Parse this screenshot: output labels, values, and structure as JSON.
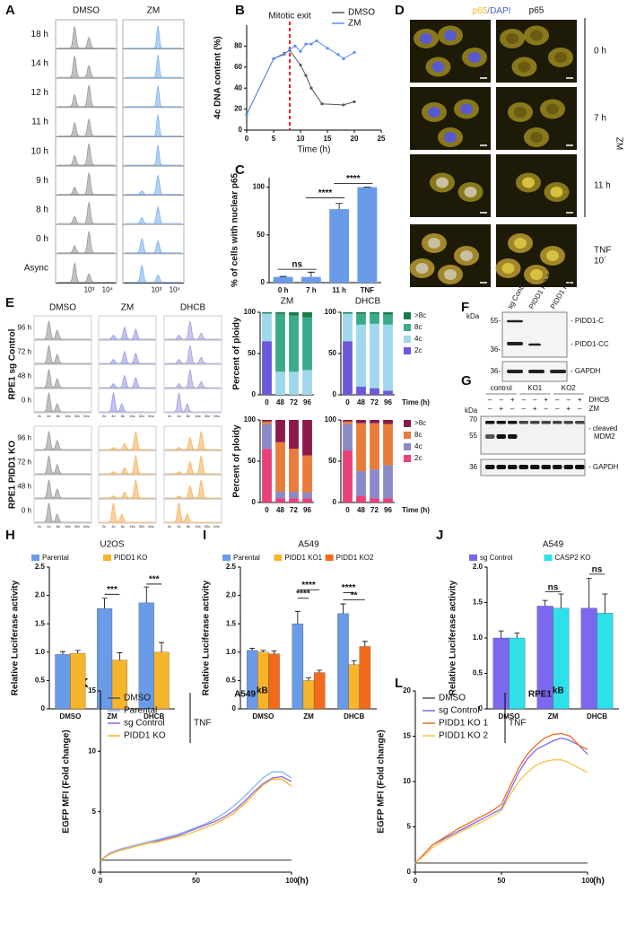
{
  "panel_labels": [
    "A",
    "B",
    "C",
    "D",
    "E",
    "F",
    "G",
    "H",
    "I",
    "J",
    "K",
    "L"
  ],
  "panel_a": {
    "columns": [
      "DMSO",
      "ZM"
    ],
    "rows": [
      "18 h",
      "14 h",
      "12 h",
      "11 h",
      "10 h",
      "9 h",
      "8 h",
      "0 h",
      "Async"
    ],
    "axis_ticks": [
      "10³",
      "10⁴"
    ]
  },
  "panel_d": {
    "header_left": [
      "p65",
      "/",
      "DAPI"
    ],
    "header_right": "p65",
    "rows": [
      "0 h",
      "7 h",
      "11 h",
      "TNF"
    ],
    "row_note": "10´",
    "treatment": "ZM"
  },
  "panel_e": {
    "columns": [
      "DMSO",
      "ZM",
      "DHCB"
    ],
    "rows": [
      "96 h",
      "72 h",
      "48 h",
      "0 h"
    ],
    "groups": [
      "RPE1 sg Control",
      "RPE1 PIDD1 KO"
    ],
    "axis_ticks": [
      "2c",
      "4c",
      "8c",
      "16c",
      "32c",
      "64c"
    ]
  },
  "panel_f": {
    "kda": "kDa",
    "markers": [
      "55-",
      "36-",
      "36-"
    ],
    "lanes": [
      "sg Control",
      "PIDD1 KO 1",
      "PIDD1 KO 2"
    ],
    "bands": [
      "- PIDD1-C",
      "- PIDD1-CC",
      "- GAPDH"
    ]
  },
  "panel_g": {
    "groups": [
      "control",
      "KO1",
      "KO2"
    ],
    "treatments": [
      "DHCB",
      "ZM"
    ],
    "dhcb_signs": [
      "–",
      "–",
      "+",
      "–",
      "–",
      "+",
      "–",
      "–",
      "+"
    ],
    "zm_signs": [
      "–",
      "+",
      "–",
      "–",
      "+",
      "–",
      "–",
      "+",
      "–"
    ],
    "kda": "kDa",
    "markers": [
      "70",
      "55",
      "36"
    ],
    "bands": [
      "- cleaved",
      "MDM2",
      "- GAPDH"
    ]
  },
  "chart_data": [
    {
      "type": "line",
      "ylabel": "4c DNA content (%)",
      "xlabel": "Time (h)",
      "xlim": [
        0,
        25
      ],
      "xticks": [
        0,
        5,
        10,
        15,
        20,
        25
      ],
      "ylim": [
        0,
        100
      ],
      "yticks": [
        0,
        20,
        40,
        60,
        80
      ],
      "annotation": "Mitotic exit",
      "annotation_x": 8,
      "annotation_color": "#e8202a",
      "legend": "top-right",
      "series": [
        {
          "name": "DMSO",
          "color": "#555555",
          "x": [
            0,
            5,
            7,
            8,
            10,
            11,
            12,
            14,
            18,
            20
          ],
          "values": [
            15,
            68,
            73,
            76,
            62,
            52,
            40,
            25,
            24,
            27
          ]
        },
        {
          "name": "ZM",
          "color": "#5b8ff0",
          "x": [
            0,
            5,
            7,
            8,
            9,
            10,
            11,
            12,
            13,
            15,
            17,
            18,
            20
          ],
          "values": [
            15,
            68,
            72,
            77,
            80,
            75,
            82,
            82,
            85,
            78,
            72,
            68,
            74
          ]
        }
      ]
    },
    {
      "type": "bar",
      "ylabel": "% of cells with nuclear p65",
      "categories": [
        "0 h",
        "7 h",
        "11 h",
        "TNF"
      ],
      "values": [
        6,
        6,
        77,
        100
      ],
      "errors": [
        0.5,
        5,
        6,
        0
      ],
      "color": "#6a9be8",
      "ylim": [
        0,
        110
      ],
      "yticks": [
        0,
        50,
        100
      ],
      "annotations": [
        "ns",
        "****",
        "****"
      ]
    },
    {
      "type": "stacked_bar",
      "title": "ZM",
      "ylabel": "Percent of ploidy",
      "categories": [
        "0",
        "48",
        "72",
        "96"
      ],
      "ylim": [
        0,
        100
      ],
      "yticks": [
        0,
        50,
        100
      ],
      "series": [
        {
          "color": "#6a5ad8",
          "values": [
            65,
            0,
            0,
            0
          ]
        },
        {
          "color": "#9fd8ec",
          "values": [
            33,
            28,
            28,
            30
          ]
        },
        {
          "color": "#3aaa8a",
          "values": [
            1,
            70,
            68,
            64
          ]
        },
        {
          "color": "#1a7a4a",
          "values": [
            1,
            2,
            4,
            6
          ]
        }
      ]
    },
    {
      "type": "stacked_bar",
      "title": "DHCB",
      "xlabel": "Time (h)",
      "categories": [
        "0",
        "48",
        "72",
        "96"
      ],
      "ylim": [
        0,
        100
      ],
      "yticks": [
        0,
        50,
        100
      ],
      "series": [
        {
          "name": "2c",
          "color": "#6a5ad8",
          "values": [
            65,
            10,
            8,
            5
          ]
        },
        {
          "name": "4c",
          "color": "#9fd8ec",
          "values": [
            33,
            75,
            78,
            80
          ]
        },
        {
          "name": "8c",
          "color": "#3aaa8a",
          "values": [
            1,
            13,
            12,
            12
          ]
        },
        {
          "name": ">8c",
          "color": "#1a7a4a",
          "values": [
            1,
            2,
            2,
            3
          ]
        }
      ]
    },
    {
      "type": "stacked_bar",
      "ylabel": "Percent of ploidy",
      "categories": [
        "0",
        "48",
        "72",
        "96"
      ],
      "ylim": [
        0,
        100
      ],
      "yticks": [
        0,
        50,
        100
      ],
      "series": [
        {
          "color": "#e8407a",
          "values": [
            65,
            5,
            5,
            5
          ]
        },
        {
          "color": "#8a8ac8",
          "values": [
            30,
            8,
            8,
            7
          ]
        },
        {
          "color": "#e87c3a",
          "values": [
            3,
            60,
            52,
            45
          ]
        },
        {
          "color": "#8b1a4a",
          "values": [
            2,
            27,
            35,
            43
          ]
        }
      ]
    },
    {
      "type": "stacked_bar",
      "xlabel": "Time (h)",
      "categories": [
        "0",
        "48",
        "72",
        "96"
      ],
      "ylim": [
        0,
        100
      ],
      "yticks": [
        0,
        50,
        100
      ],
      "series": [
        {
          "name": "2c",
          "color": "#e8407a",
          "values": [
            63,
            8,
            5,
            5
          ]
        },
        {
          "name": "4c",
          "color": "#8a8ac8",
          "values": [
            32,
            30,
            35,
            40
          ]
        },
        {
          "name": "8c",
          "color": "#e87c3a",
          "values": [
            3,
            58,
            56,
            50
          ]
        },
        {
          "name": ">8c",
          "color": "#8b1a4a",
          "values": [
            2,
            4,
            4,
            5
          ]
        }
      ]
    },
    {
      "type": "grouped_bar",
      "title": "U2OS",
      "ylabel": "Relative Luciferase activity",
      "categories": [
        "DMSO",
        "ZM",
        "DHCB"
      ],
      "ylim": [
        0,
        2.5
      ],
      "yticks": [
        0,
        0.5,
        {
          "value": 1,
          "label": "1.0"
        },
        1.5,
        {
          "value": 2,
          "label": "2.0"
        },
        2.5
      ],
      "annotations": [
        "***",
        "***"
      ],
      "series": [
        {
          "name": "Parental",
          "color": "#6a9be8",
          "values": [
            0.96,
            1.77,
            1.87
          ],
          "errors": [
            0.05,
            0.18,
            0.28
          ]
        },
        {
          "name": "PIDD1 KO",
          "color": "#f7b52b",
          "values": [
            0.98,
            0.86,
            1.0
          ],
          "errors": [
            0.05,
            0.13,
            0.17
          ]
        }
      ]
    },
    {
      "type": "grouped_bar",
      "title": "A549",
      "ylabel": "Relative Luciferase activity",
      "categories": [
        "DMSO",
        "ZM",
        "DHCB"
      ],
      "ylim": [
        0,
        2.5
      ],
      "yticks": [
        0,
        0.5,
        {
          "value": 1,
          "label": "1.0"
        },
        1.5,
        {
          "value": 2,
          "label": "2.0"
        },
        2.5
      ],
      "annotations": [
        "****",
        "****",
        "****",
        "**"
      ],
      "series": [
        {
          "name": "Parental",
          "color": "#6a9be8",
          "values": [
            1.03,
            1.5,
            1.68
          ],
          "errors": [
            0.04,
            0.22,
            0.17
          ]
        },
        {
          "name": "PIDD1 KO1",
          "color": "#f7b52b",
          "values": [
            1.0,
            0.5,
            0.78
          ],
          "errors": [
            0.03,
            0.05,
            0.07
          ]
        },
        {
          "name": "PIDD1 KO2",
          "color": "#f26b1d",
          "values": [
            0.97,
            0.64,
            1.1
          ],
          "errors": [
            0.05,
            0.04,
            0.09
          ]
        }
      ]
    },
    {
      "type": "grouped_bar",
      "title": "A549",
      "ylabel": "Relative Luciferase activity",
      "categories": [
        "DMSO",
        "ZM",
        "DHCB"
      ],
      "ylim": [
        0,
        2
      ],
      "yticks": [
        0,
        0.5,
        {
          "value": 1,
          "label": "1.0"
        },
        1.5,
        {
          "value": 2,
          "label": "2.0"
        }
      ],
      "annotations": [
        "ns",
        "ns"
      ],
      "series": [
        {
          "name": "sg Control",
          "color": "#7b68ee",
          "values": [
            1.0,
            1.45,
            1.42
          ],
          "errors": [
            0.1,
            0.08,
            0.42
          ]
        },
        {
          "name": "CASP2 KO",
          "color": "#2ee0e8",
          "values": [
            1.0,
            1.42,
            1.35
          ],
          "errors": [
            0.07,
            0.2,
            0.27
          ]
        }
      ]
    },
    {
      "type": "line",
      "title": "A549",
      "title_sup": "kB",
      "ylabel": "EGFP MFI (Fold change)",
      "xlabel": "(h)",
      "annotation": "TNF",
      "legend": "top-left",
      "xlim": [
        0,
        100
      ],
      "xticks": [
        0,
        50,
        100
      ],
      "ylim": [
        0,
        15
      ],
      "yticks": [
        0,
        5,
        10,
        15
      ],
      "x": [
        0,
        5,
        10,
        15,
        20,
        25,
        30,
        35,
        40,
        45,
        50,
        55,
        60,
        65,
        70,
        75,
        80,
        85,
        90,
        95,
        100
      ],
      "series": [
        {
          "name": "DMSO",
          "color": "#555555",
          "values": [
            1,
            1,
            1,
            1,
            1,
            1,
            1,
            1,
            1,
            1,
            1,
            1,
            1,
            1,
            1,
            1,
            1,
            1,
            1,
            1,
            1
          ]
        },
        {
          "name": "Parental",
          "color": "#8ab4f8",
          "values": [
            1,
            1.6,
            1.9,
            2.1,
            2.3,
            2.5,
            2.7,
            2.9,
            3.1,
            3.4,
            3.7,
            4.0,
            4.4,
            4.9,
            5.5,
            6.2,
            7.0,
            7.8,
            8.3,
            8.3,
            7.8
          ]
        },
        {
          "name": "sg Control",
          "color": "#8a6ae0",
          "values": [
            1,
            1.5,
            1.8,
            2.0,
            2.2,
            2.4,
            2.6,
            2.8,
            3.0,
            3.3,
            3.6,
            3.9,
            4.2,
            4.6,
            5.1,
            5.8,
            6.6,
            7.3,
            7.8,
            7.9,
            7.5
          ]
        },
        {
          "name": "PIDD1 KO",
          "color": "#f7b52b",
          "values": [
            1,
            1.5,
            1.8,
            2.0,
            2.2,
            2.4,
            2.5,
            2.7,
            2.9,
            3.1,
            3.4,
            3.7,
            4.0,
            4.4,
            4.9,
            5.6,
            6.4,
            7.2,
            7.7,
            7.7,
            7.1
          ]
        }
      ]
    },
    {
      "type": "line",
      "title": "RPE1",
      "title_sup": "kB",
      "ylabel": "EGFP MFI (Fold change)",
      "xlabel": "(h)",
      "annotation": "TNF",
      "legend": "top-left",
      "xlim": [
        0,
        100
      ],
      "xticks": [
        0,
        50,
        100
      ],
      "ylim": [
        0,
        20
      ],
      "yticks": [
        0,
        5,
        10,
        15,
        20
      ],
      "x": [
        0,
        5,
        10,
        15,
        20,
        25,
        30,
        35,
        40,
        45,
        50,
        55,
        60,
        65,
        70,
        75,
        80,
        85,
        90,
        95,
        100
      ],
      "series": [
        {
          "name": "DMSO",
          "color": "#555555",
          "values": [
            1,
            1,
            1,
            1,
            1,
            1,
            1,
            1,
            1,
            1,
            1,
            1,
            1,
            1,
            1,
            1,
            1,
            1,
            1,
            1,
            1
          ]
        },
        {
          "name": "sg Control",
          "color": "#7b68ee",
          "values": [
            1,
            2,
            3,
            3.5,
            4,
            4.5,
            5,
            5.5,
            6,
            6.5,
            7,
            9,
            11,
            12.5,
            13.5,
            14,
            14.5,
            14.8,
            14.5,
            14,
            13
          ]
        },
        {
          "name": "PIDD1 KO 1",
          "color": "#f26b1d",
          "values": [
            1,
            2,
            3,
            3.6,
            4.2,
            4.8,
            5.3,
            5.8,
            6.3,
            6.8,
            7.5,
            9.5,
            11.5,
            13,
            14,
            14.8,
            15.2,
            15.3,
            15,
            14,
            13.5
          ]
        },
        {
          "name": "PIDD1 KO 2",
          "color": "#f7c34a",
          "values": [
            1,
            1.8,
            2.7,
            3.3,
            3.8,
            4.3,
            4.8,
            5.2,
            5.7,
            6.2,
            6.8,
            8.5,
            10,
            11,
            11.8,
            12.2,
            12.4,
            12.4,
            12,
            11.5,
            11
          ]
        }
      ]
    }
  ]
}
